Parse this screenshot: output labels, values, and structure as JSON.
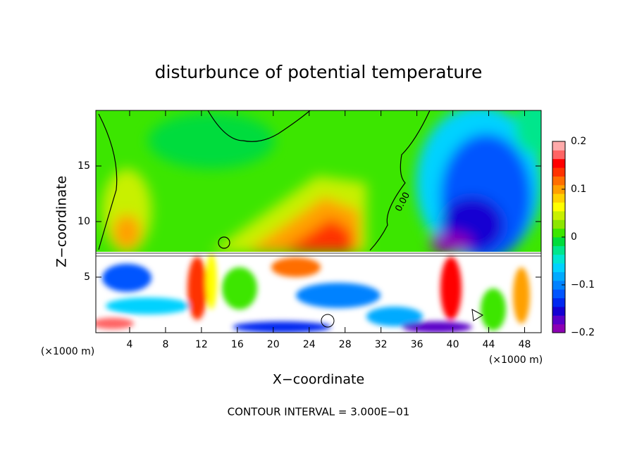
{
  "chart_data": {
    "type": "contour",
    "title": "disturbunce of potential temperature",
    "xlabel": "X−coordinate",
    "ylabel": "Z−coordinate",
    "x_unit_label": "(×1000 m)",
    "y_unit_label": "(×1000 m)",
    "note": "CONTOUR INTERVAL = 3.000E−01",
    "contour_label": "0.00",
    "xlim": [
      0,
      50
    ],
    "xticks": [
      4,
      8,
      12,
      16,
      20,
      24,
      28,
      32,
      36,
      40,
      44,
      48
    ],
    "ylim": [
      0,
      20
    ],
    "yticks": [
      5,
      10,
      15
    ],
    "colorbar": {
      "clim": [
        -0.2,
        0.2
      ],
      "ticks": [
        {
          "value": -0.2,
          "label": "−0.2"
        },
        {
          "value": -0.1,
          "label": "−0.1"
        },
        0,
        0.1,
        0.2
      ],
      "colors": [
        "#8c00b4",
        "#5a00c8",
        "#1400d2",
        "#0028f0",
        "#0055ff",
        "#0082ff",
        "#00aaff",
        "#00d2ff",
        "#00e6d2",
        "#00e68c",
        "#00dc3c",
        "#3ce600",
        "#8ce600",
        "#c8f000",
        "#ffff00",
        "#ffd200",
        "#ffa000",
        "#ff6e00",
        "#ff3200",
        "#ff0000",
        "#ff6464",
        "#ffaaaa"
      ]
    }
  }
}
